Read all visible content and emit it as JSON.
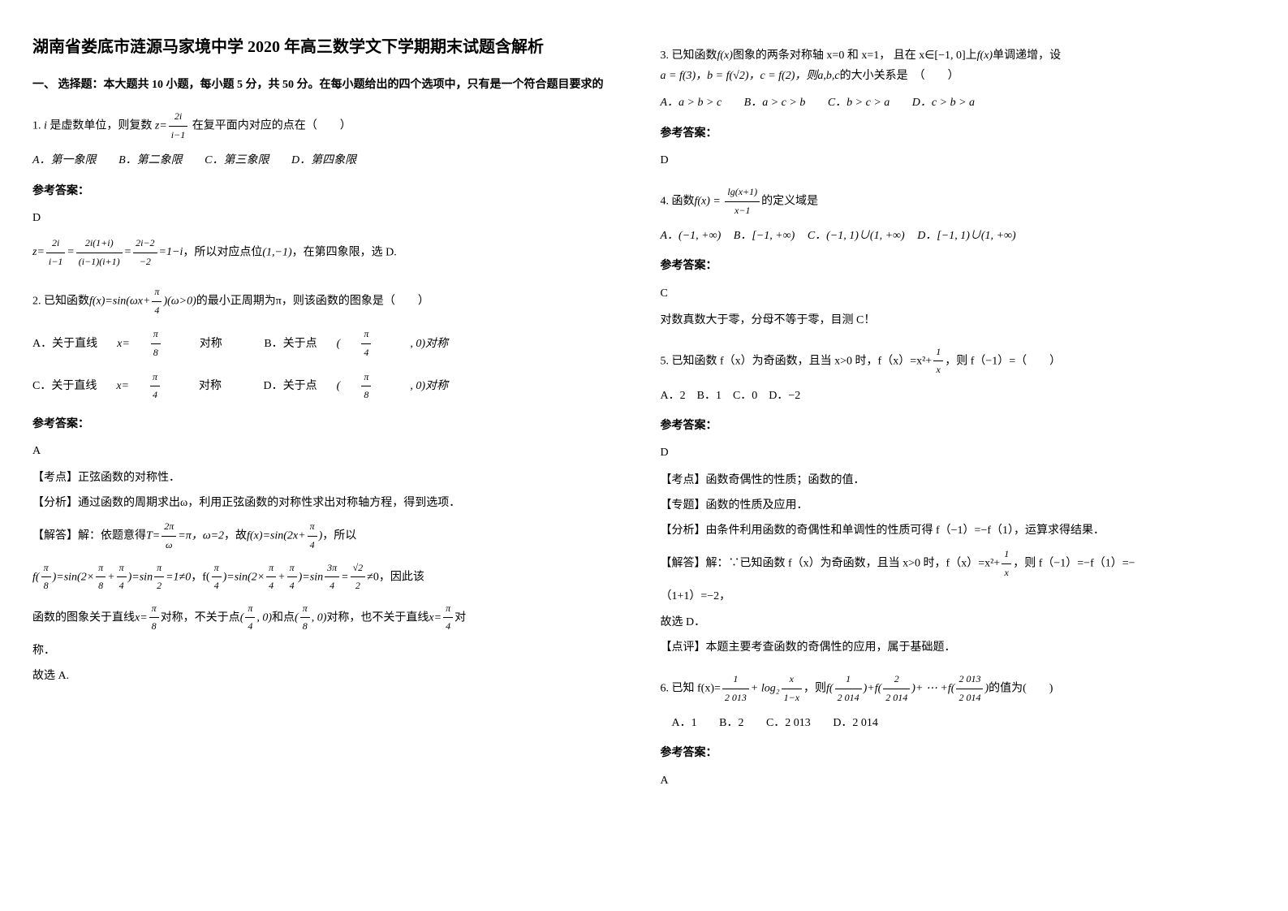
{
  "title": "湖南省娄底市涟源马家境中学 2020 年高三数学文下学期期末试题含解析",
  "section1_header": "一、 选择题：本大题共 10 小题，每小题 5 分，共 50 分。在每小题给出的四个选项中，只有是一个符合题目要求的",
  "q1": {
    "stem_prefix": "1. ",
    "stem_i": "i",
    "stem_mid": " 是虚数单位，则复数 ",
    "stem_z": "z=",
    "stem_num": "2i",
    "stem_den": "i−1",
    "stem_suffix": " 在复平面内对应的点在（　　）",
    "optA": "A．第一象限",
    "optB": "B．第二象限",
    "optC": "C．第三象限",
    "optD": "D．第四象限",
    "ans_label": "参考答案：",
    "ans": "D",
    "explain": "，所以对应点位",
    "explain_pt": "(1,−1)",
    "explain_end": "，在第四象限，选 D."
  },
  "q2": {
    "stem": "2. 已知函数",
    "stem_fx": "f(x)=sin(ωx+",
    "stem_num": "π",
    "stem_den": "4",
    "stem_cond": ")(ω>0)",
    "stem_suffix": "的最小正周期为π，则该函数的图象是（　　）",
    "optA_pre": "A．关于直线",
    "optA_x": "x=",
    "optA_num": "π",
    "optA_den": "8",
    "optA_suf": "对称",
    "optB_pre": "B．关于点",
    "optB_pt": "(",
    "optB_num": "π",
    "optB_den": "4",
    "optB_suf": ", 0)对称",
    "optC_pre": "C．关于直线",
    "optC_x": "x=",
    "optC_num": "π",
    "optC_den": "4",
    "optC_suf": "对称",
    "optD_pre": "D．关于点",
    "optD_pt": "(",
    "optD_num": "π",
    "optD_den": "8",
    "optD_suf": ", 0)对称",
    "ans_label": "参考答案：",
    "ans": "A",
    "kaodian": "【考点】正弦函数的对称性．",
    "fenxi": "【分析】通过函数的周期求出ω，利用正弦函数的对称性求出对称轴方程，得到选项．",
    "jieda_pre": "【解答】解：依题意得",
    "jieda_T": "T=",
    "jieda_Tnum": "2π",
    "jieda_Tden": "ω",
    "jieda_Teq": "=π，ω=2",
    "jieda_mid": "，故",
    "jieda_fx": "f(x)=sin(2x+",
    "jieda_fxnum": "π",
    "jieda_fxden": "4",
    "jieda_fxend": ")",
    "jieda_suf": "，所以",
    "line2_a": "f(",
    "line2_num1": "π",
    "line2_den1": "8",
    "line2_b": ")=sin(2×",
    "line2_num2": "π",
    "line2_den2": "8",
    "line2_c": "+",
    "line2_num3": "π",
    "line2_den3": "4",
    "line2_d": ")=sin",
    "line2_num4": "π",
    "line2_den4": "2",
    "line2_e": "=1≠0",
    "line2_f": "，f(",
    "line2_num5": "π",
    "line2_den5": "4",
    "line2_g": ")=sin(2×",
    "line2_num6": "π",
    "line2_den6": "4",
    "line2_h": "+",
    "line2_num7": "π",
    "line2_den7": "4",
    "line2_i": ")",
    "line2_j": "=",
    "line2_k": "sin",
    "line2_num8": "3π",
    "line2_den8": "4",
    "line2_l": "=",
    "line2_num9": "√2",
    "line2_den9": "2",
    "line2_m": "≠0，因此该",
    "line3_pre": "函数的图象关于直线",
    "line3_x": "x=",
    "line3_num1": "π",
    "line3_den1": "8",
    "line3_mid": "对称，不关于点",
    "line3_pt1a": "(",
    "line3_num2": "π",
    "line3_den2": "4",
    "line3_pt1b": ", 0)",
    "line3_mid2": "和点",
    "line3_pt2a": "(",
    "line3_num3": "π",
    "line3_den3": "8",
    "line3_pt2b": ", 0)",
    "line3_mid3": "对称，也不关于直线",
    "line3_x2": "x=",
    "line3_num4": "π",
    "line3_den4": "4",
    "line3_suf": "对",
    "line4": "称．",
    "final": "故选 A."
  },
  "q3": {
    "stem_pre": "3. 已知函数",
    "stem_fx": "f(x)",
    "stem_mid1": "图象的两条对称轴 x=0 和 x=1， 且在 x∈[−1, 0]上",
    "stem_fx2": "f(x)",
    "stem_mid2": "单调递增，设",
    "line2": "a = f(3)，b = f(√2)，c = f(2)，则",
    "line2_abc": "a,b,c",
    "line2_suf": "的大小关系是　（　　）",
    "optA": "A．a > b > c",
    "optB": "B．a > c > b",
    "optC": "C．b > c > a",
    "optD": "D．c > b > a",
    "ans_label": "参考答案：",
    "ans": "D"
  },
  "q4": {
    "stem_pre": "4. 函数",
    "stem_fx": "f(x) = ",
    "stem_num": "lg(x+1)",
    "stem_den": "x−1",
    "stem_suf": "的定义域是",
    "optA": "A．(−1, +∞)",
    "optB": "B．[−1, +∞)",
    "optC": "C．(−1, 1)∪(1, +∞)",
    "optD": "D．[−1, 1)∪(1, +∞)",
    "ans_label": "参考答案：",
    "ans": "C",
    "explain": "对数真数大于零，分母不等于零，目测 C！"
  },
  "q5": {
    "stem_pre": "5. 已知函数 f（x）为奇函数，且当 x>0 时，f（x）=x²+",
    "stem_num": "1",
    "stem_den": "x",
    "stem_suf": "，则 f（−1）=（　　）",
    "opts": "A．2　B．1　C．0　D．−2",
    "ans_label": "参考答案：",
    "ans": "D",
    "kaodian": "【考点】函数奇偶性的性质；函数的值．",
    "zhuanti": "【专题】函数的性质及应用．",
    "fenxi": "【分析】由条件利用函数的奇偶性和单调性的性质可得 f（−1）=−f（1），运算求得结果．",
    "jieda_pre": "【解答】解：∵已知函数 f（x）为奇函数，且当 x>0 时，f（x）=x²+",
    "jieda_num": "1",
    "jieda_den": "x",
    "jieda_suf": "，则 f（−1）=−f（1）=−",
    "jieda_line2": "（1+1）=−2，",
    "jieda_final": "故选 D．",
    "dianping": "【点评】本题主要考查函数的奇偶性的应用，属于基础题．"
  },
  "q6": {
    "stem_pre": "6. 已知 f(x)=",
    "stem_num1": "1",
    "stem_den1": "2 013",
    "stem_mid1": "+ log₂",
    "stem_num2": "x",
    "stem_den2": "1−x",
    "stem_mid2": "，则",
    "stem_f1a": "f(",
    "stem_f1num": "1",
    "stem_f1den": "2 014",
    "stem_f1b": ")",
    "stem_plus1": "+",
    "stem_f2a": "f(",
    "stem_f2num": "2",
    "stem_f2den": "2 014",
    "stem_f2b": ")",
    "stem_plus2": "+ ⋯ +",
    "stem_f3a": "f(",
    "stem_f3num": "2 013",
    "stem_f3den": "2 014",
    "stem_f3b": ")",
    "stem_suf": "的值为(　　)",
    "optA": "A．1",
    "optB": "B．2",
    "optC": "C．2 013",
    "optD": "D．2 014",
    "ans_label": "参考答案：",
    "ans": "A"
  }
}
